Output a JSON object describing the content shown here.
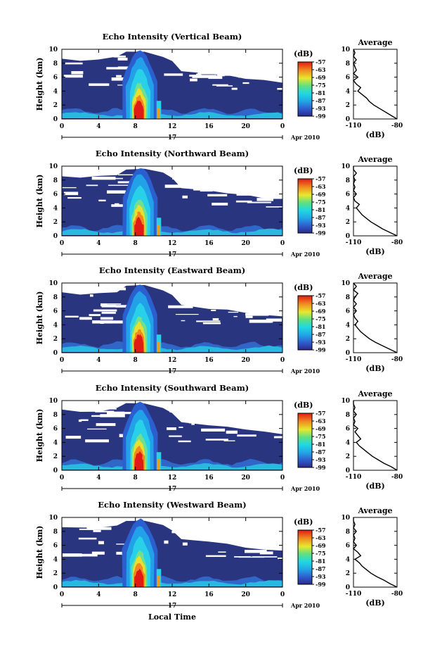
{
  "figure": {
    "xlabel": "Local Time",
    "ylabel": "Height (km)",
    "date_label": "Apr 2010",
    "day_label": "17",
    "colorbar_unit": "(dB)",
    "colorbar_ticks": [
      "-57",
      "-63",
      "-69",
      "-75",
      "-81",
      "-87",
      "-93",
      "-99"
    ],
    "avg_title": "Average",
    "avg_xlabel": "(dB)",
    "avg_xticks": [
      "-110",
      "-80"
    ],
    "x_ticks": [
      "0",
      "4",
      "8",
      "12",
      "16",
      "20",
      "0"
    ],
    "y_ticks": [
      "0",
      "2",
      "4",
      "6",
      "8",
      "10"
    ],
    "colors": {
      "background": "#2a3580",
      "strong": "#d02010",
      "weak": "#3a4aa0"
    }
  },
  "chart_data": [
    {
      "type": "heatmap",
      "title": "Echo Intensity (Vertical Beam)",
      "xlim": [
        0,
        24
      ],
      "ylim": [
        0,
        10
      ],
      "zlim": [
        -99,
        -57
      ],
      "profile": [
        [
          -80,
          0
        ],
        [
          -84,
          0.5
        ],
        [
          -88,
          1
        ],
        [
          -92,
          1.5
        ],
        [
          -96,
          2
        ],
        [
          -99,
          2.5
        ],
        [
          -101,
          3
        ],
        [
          -104,
          3.5
        ],
        [
          -107,
          4
        ],
        [
          -105,
          4.5
        ],
        [
          -108,
          5
        ],
        [
          -110,
          5.5
        ],
        [
          -107,
          6
        ],
        [
          -110,
          6.5
        ],
        [
          -108,
          7
        ],
        [
          -109,
          7.5
        ],
        [
          -110,
          8
        ],
        [
          -108,
          8.5
        ],
        [
          -110,
          9
        ],
        [
          -109,
          9.5
        ],
        [
          -110,
          10
        ]
      ]
    },
    {
      "type": "heatmap",
      "title": "Echo Intensity (Northward Beam)",
      "xlim": [
        0,
        24
      ],
      "ylim": [
        0,
        10
      ],
      "zlim": [
        -99,
        -57
      ],
      "profile": [
        [
          -80,
          0
        ],
        [
          -85,
          0.5
        ],
        [
          -90,
          1
        ],
        [
          -94,
          1.5
        ],
        [
          -98,
          2
        ],
        [
          -101,
          2.5
        ],
        [
          -104,
          3
        ],
        [
          -106,
          3.5
        ],
        [
          -108,
          4
        ],
        [
          -106,
          4.5
        ],
        [
          -109,
          5
        ],
        [
          -110,
          5.5
        ],
        [
          -108,
          6
        ],
        [
          -110,
          6.5
        ],
        [
          -109,
          7
        ],
        [
          -110,
          7.5
        ],
        [
          -109,
          8
        ],
        [
          -110,
          8.5
        ],
        [
          -108,
          9
        ],
        [
          -110,
          9.5
        ],
        [
          -110,
          10
        ]
      ]
    },
    {
      "type": "heatmap",
      "title": "Echo Intensity (Eastward Beam)",
      "xlim": [
        0,
        24
      ],
      "ylim": [
        0,
        10
      ],
      "zlim": [
        -99,
        -57
      ],
      "profile": [
        [
          -80,
          0
        ],
        [
          -85,
          0.5
        ],
        [
          -90,
          1
        ],
        [
          -95,
          1.5
        ],
        [
          -99,
          2
        ],
        [
          -102,
          2.5
        ],
        [
          -105,
          3
        ],
        [
          -107,
          3.5
        ],
        [
          -109,
          4
        ],
        [
          -107,
          4.5
        ],
        [
          -109,
          5
        ],
        [
          -110,
          5.5
        ],
        [
          -108,
          6
        ],
        [
          -110,
          6.5
        ],
        [
          -108,
          7
        ],
        [
          -110,
          7.5
        ],
        [
          -109,
          8
        ],
        [
          -107,
          8.5
        ],
        [
          -110,
          9
        ],
        [
          -108,
          9.5
        ],
        [
          -110,
          10
        ]
      ]
    },
    {
      "type": "heatmap",
      "title": "Echo Intensity (Southward Beam)",
      "xlim": [
        0,
        24
      ],
      "ylim": [
        0,
        10
      ],
      "zlim": [
        -99,
        -57
      ],
      "profile": [
        [
          -80,
          0
        ],
        [
          -84,
          0.5
        ],
        [
          -89,
          1
        ],
        [
          -93,
          1.5
        ],
        [
          -97,
          2
        ],
        [
          -100,
          2.5
        ],
        [
          -103,
          3
        ],
        [
          -106,
          3.5
        ],
        [
          -108,
          4
        ],
        [
          -105,
          4.5
        ],
        [
          -107,
          5
        ],
        [
          -109,
          5.5
        ],
        [
          -107,
          6
        ],
        [
          -110,
          6.5
        ],
        [
          -109,
          7
        ],
        [
          -110,
          7.5
        ],
        [
          -108,
          8
        ],
        [
          -110,
          8.5
        ],
        [
          -109,
          9
        ],
        [
          -110,
          9.5
        ],
        [
          -110,
          10
        ]
      ]
    },
    {
      "type": "heatmap",
      "title": "Echo Intensity (Westward Beam)",
      "xlim": [
        0,
        24
      ],
      "ylim": [
        0,
        10
      ],
      "zlim": [
        -99,
        -57
      ],
      "profile": [
        [
          -80,
          0
        ],
        [
          -85,
          0.5
        ],
        [
          -89,
          1
        ],
        [
          -94,
          1.5
        ],
        [
          -98,
          2
        ],
        [
          -101,
          2.5
        ],
        [
          -104,
          3
        ],
        [
          -106,
          3.5
        ],
        [
          -109,
          4
        ],
        [
          -105,
          4.5
        ],
        [
          -107,
          5
        ],
        [
          -110,
          5.5
        ],
        [
          -108,
          6
        ],
        [
          -110,
          6.5
        ],
        [
          -109,
          7
        ],
        [
          -110,
          7.5
        ],
        [
          -108,
          8
        ],
        [
          -110,
          8.5
        ],
        [
          -109,
          9
        ],
        [
          -110,
          9.5
        ],
        [
          -110,
          10
        ]
      ]
    }
  ]
}
